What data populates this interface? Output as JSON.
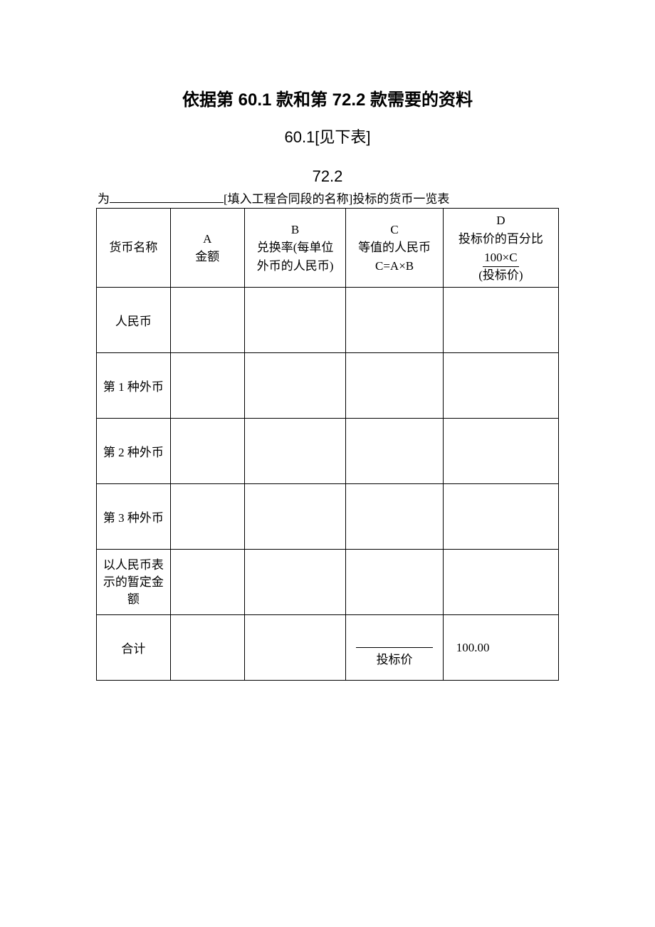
{
  "title": "依据第 60.1 款和第 72.2 款需要的资料",
  "subtitle1": "60.1[见下表]",
  "subtitle2": "72.2",
  "form_prefix": "为",
  "form_suffix": "[填入工程合同段的名称]投标的货币一览表",
  "headers": {
    "col0": "货币名称",
    "col1_line1": "A",
    "col1_line2": "金额",
    "col2_line1": "B",
    "col2_line2": "兑换率(每单位",
    "col2_line3": "外币的人民币)",
    "col3_line1": "C",
    "col3_line2": "等值的人民币",
    "col3_line3": "C=A×B",
    "col4_line1": "D",
    "col4_line2": "投标价的百分比",
    "col4_frac_top": "100×C",
    "col4_frac_bot": "(投标价)"
  },
  "rows": [
    {
      "label": "人民币"
    },
    {
      "label": "第 1 种外币"
    },
    {
      "label": "第 2 种外币"
    },
    {
      "label": "第 3 种外币"
    },
    {
      "label": "以人民币表示的暂定金额"
    }
  ],
  "total": {
    "label": "合计",
    "c_label": "投标价",
    "d_value": "100.00"
  },
  "colors": {
    "background": "#ffffff",
    "text": "#000000",
    "border": "#000000"
  },
  "column_widths_pct": [
    16,
    16,
    22,
    21,
    25
  ],
  "font_sizes": {
    "title": 24,
    "subtitle": 22,
    "body": 17
  }
}
